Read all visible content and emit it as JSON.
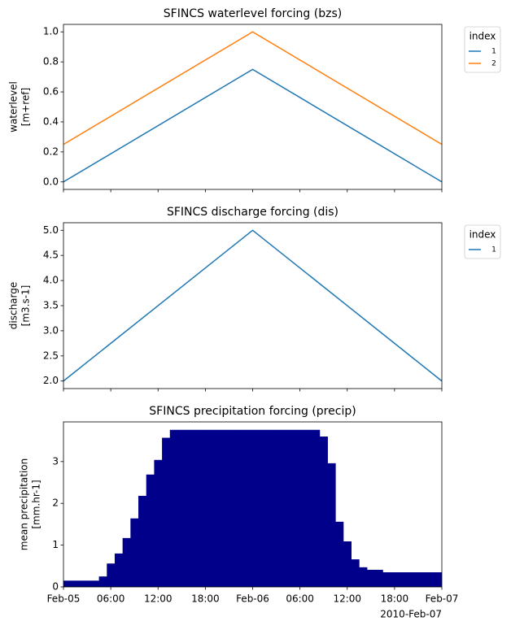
{
  "chart_data": [
    {
      "type": "line",
      "title": "SFINCS waterlevel forcing (bzs)",
      "ylabel": [
        "waterlevel",
        "[m+ref]"
      ],
      "x": [
        "2010-02-05T00:00",
        "2010-02-06T00:00",
        "2010-02-07T00:00"
      ],
      "series": [
        {
          "name": "1",
          "color": "#1f77b4",
          "values": [
            0,
            0.75,
            0
          ]
        },
        {
          "name": "2",
          "color": "#ff7f0e",
          "values": [
            0.25,
            1.0,
            0.25
          ]
        }
      ],
      "xlim": [
        "2010-02-05T00:00",
        "2010-02-07T00:00"
      ],
      "ylim": [
        -0.05,
        1.05
      ],
      "yticks": [
        {
          "value": 0,
          "label": "0.0"
        },
        0.2,
        0.4,
        0.6,
        0.8,
        {
          "value": 1,
          "label": "1.0"
        }
      ],
      "xticks": [
        "2010-02-05T00:00",
        "2010-02-05T06:00",
        "2010-02-05T12:00",
        "2010-02-05T18:00",
        "2010-02-06T00:00",
        "2010-02-06T06:00",
        "2010-02-06T12:00",
        "2010-02-06T18:00",
        "2010-02-07T00:00"
      ],
      "xtick_labels": false,
      "legend_title": "index",
      "legend": "outside upper right"
    },
    {
      "type": "line",
      "title": "SFINCS discharge forcing (dis)",
      "ylabel": [
        "discharge",
        "[m3.s-1]"
      ],
      "x": [
        "2010-02-05T00:00",
        "2010-02-06T00:00",
        "2010-02-07T00:00"
      ],
      "series": [
        {
          "name": "1",
          "color": "#1f77b4",
          "values": [
            2.0,
            5.0,
            2.0
          ]
        }
      ],
      "xlim": [
        "2010-02-05T00:00",
        "2010-02-07T00:00"
      ],
      "ylim": [
        1.85,
        5.15
      ],
      "yticks": [
        {
          "value": 2,
          "label": "2.0"
        },
        2.5,
        {
          "value": 3,
          "label": "3.0"
        },
        3.5,
        {
          "value": 4,
          "label": "4.0"
        },
        4.5,
        {
          "value": 5,
          "label": "5.0"
        }
      ],
      "xticks": [
        "2010-02-05T00:00",
        "2010-02-05T06:00",
        "2010-02-05T12:00",
        "2010-02-05T18:00",
        "2010-02-06T00:00",
        "2010-02-06T06:00",
        "2010-02-06T12:00",
        "2010-02-06T18:00",
        "2010-02-07T00:00"
      ],
      "xtick_labels": false,
      "legend_title": "index",
      "legend": "outside upper right"
    },
    {
      "type": "bar",
      "title": "SFINCS precipitation forcing (precip)",
      "ylabel": [
        "mean precipitation",
        "[mm.hr-1]"
      ],
      "color": "#00008b",
      "x": [
        "2010-02-05T00:00",
        "2010-02-05T01:00",
        "2010-02-05T02:00",
        "2010-02-05T03:00",
        "2010-02-05T04:00",
        "2010-02-05T05:00",
        "2010-02-05T06:00",
        "2010-02-05T07:00",
        "2010-02-05T08:00",
        "2010-02-05T09:00",
        "2010-02-05T10:00",
        "2010-02-05T11:00",
        "2010-02-05T12:00",
        "2010-02-05T13:00",
        "2010-02-05T14:00",
        "2010-02-05T15:00",
        "2010-02-05T16:00",
        "2010-02-05T17:00",
        "2010-02-05T18:00",
        "2010-02-05T19:00",
        "2010-02-05T20:00",
        "2010-02-05T21:00",
        "2010-02-05T22:00",
        "2010-02-05T23:00",
        "2010-02-06T00:00",
        "2010-02-06T01:00",
        "2010-02-06T02:00",
        "2010-02-06T03:00",
        "2010-02-06T04:00",
        "2010-02-06T05:00",
        "2010-02-06T06:00",
        "2010-02-06T07:00",
        "2010-02-06T08:00",
        "2010-02-06T09:00",
        "2010-02-06T10:00",
        "2010-02-06T11:00",
        "2010-02-06T12:00",
        "2010-02-06T13:00",
        "2010-02-06T14:00",
        "2010-02-06T15:00",
        "2010-02-06T16:00",
        "2010-02-06T17:00",
        "2010-02-06T18:00",
        "2010-02-06T19:00",
        "2010-02-06T20:00",
        "2010-02-06T21:00",
        "2010-02-06T22:00",
        "2010-02-06T23:00",
        "2010-02-07T00:00"
      ],
      "values": [
        0.15,
        0.15,
        0.15,
        0.15,
        0.15,
        0.25,
        0.56,
        0.8,
        1.17,
        1.64,
        2.18,
        2.69,
        3.04,
        3.57,
        3.76,
        3.76,
        3.76,
        3.76,
        3.76,
        3.76,
        3.76,
        3.76,
        3.76,
        3.76,
        3.76,
        3.76,
        3.76,
        3.76,
        3.76,
        3.76,
        3.76,
        3.76,
        3.76,
        3.6,
        2.96,
        1.56,
        1.09,
        0.66,
        0.47,
        0.41,
        0.41,
        0.35,
        0.35,
        0.35,
        0.35,
        0.35,
        0.35,
        0.35,
        0.35
      ],
      "xlim": [
        "2010-02-05T00:00",
        "2010-02-07T00:00"
      ],
      "ylim": [
        0,
        3.95
      ],
      "yticks": [
        0,
        1,
        2,
        3
      ],
      "xticks": [
        {
          "value": "2010-02-05T00:00",
          "label": "Feb-05"
        },
        {
          "value": "2010-02-05T06:00",
          "label": "06:00"
        },
        {
          "value": "2010-02-05T12:00",
          "label": "12:00"
        },
        {
          "value": "2010-02-05T18:00",
          "label": "18:00"
        },
        {
          "value": "2010-02-06T00:00",
          "label": "Feb-06"
        },
        {
          "value": "2010-02-06T06:00",
          "label": "06:00"
        },
        {
          "value": "2010-02-06T12:00",
          "label": "12:00"
        },
        {
          "value": "2010-02-06T18:00",
          "label": "18:00"
        },
        {
          "value": "2010-02-07T00:00",
          "label": "Feb-07"
        }
      ],
      "xtick_labels": true,
      "x_offset_label": "2010-Feb-07"
    }
  ]
}
